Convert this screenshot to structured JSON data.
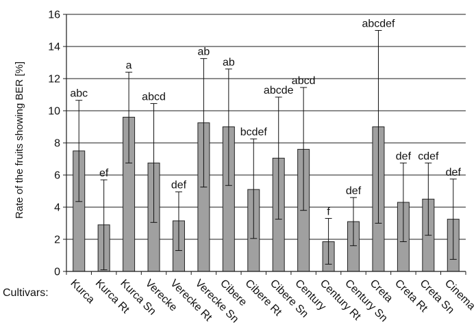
{
  "chart_data": {
    "type": "bar",
    "title": "",
    "xlabel": "Cultivars:",
    "ylabel": "Rate of the fruits showing  BER [%]",
    "ylim": [
      0,
      16
    ],
    "yticks": [
      0,
      2,
      4,
      6,
      8,
      10,
      12,
      14,
      16
    ],
    "grid": "horizontal",
    "bar_color": "#a0a0a0",
    "categories": [
      "Kurca",
      "Kurca Rt",
      "Kurca Sn",
      "Verecke",
      "Verecke Rt",
      "Verecke Sn",
      "Cibere",
      "Cibere Rt",
      "Cibere Sn",
      "Century",
      "Century Rt",
      "Century Sn",
      "Creta",
      "Creta Rt",
      "Creta Sn",
      "Cinema"
    ],
    "values": [
      7.5,
      2.9,
      9.6,
      6.75,
      3.15,
      9.25,
      9.0,
      5.1,
      7.05,
      7.6,
      1.85,
      3.1,
      9.0,
      4.3,
      4.5,
      3.25
    ],
    "error_low": [
      4.35,
      0.1,
      6.75,
      3.05,
      1.3,
      5.25,
      5.35,
      2.05,
      3.25,
      3.8,
      0.45,
      1.6,
      3.0,
      1.85,
      2.25,
      0.75
    ],
    "error_high": [
      10.65,
      5.7,
      12.4,
      10.45,
      4.95,
      13.25,
      12.6,
      8.25,
      10.85,
      11.45,
      3.3,
      4.6,
      15.0,
      6.75,
      6.75,
      5.75
    ],
    "letters": [
      "abc",
      "ef",
      "a",
      "abcd",
      "def",
      "ab",
      "ab",
      "bcdef",
      "abcde",
      "abcd",
      "f",
      "def",
      "abcdef",
      "def",
      "cdef",
      "def"
    ]
  }
}
